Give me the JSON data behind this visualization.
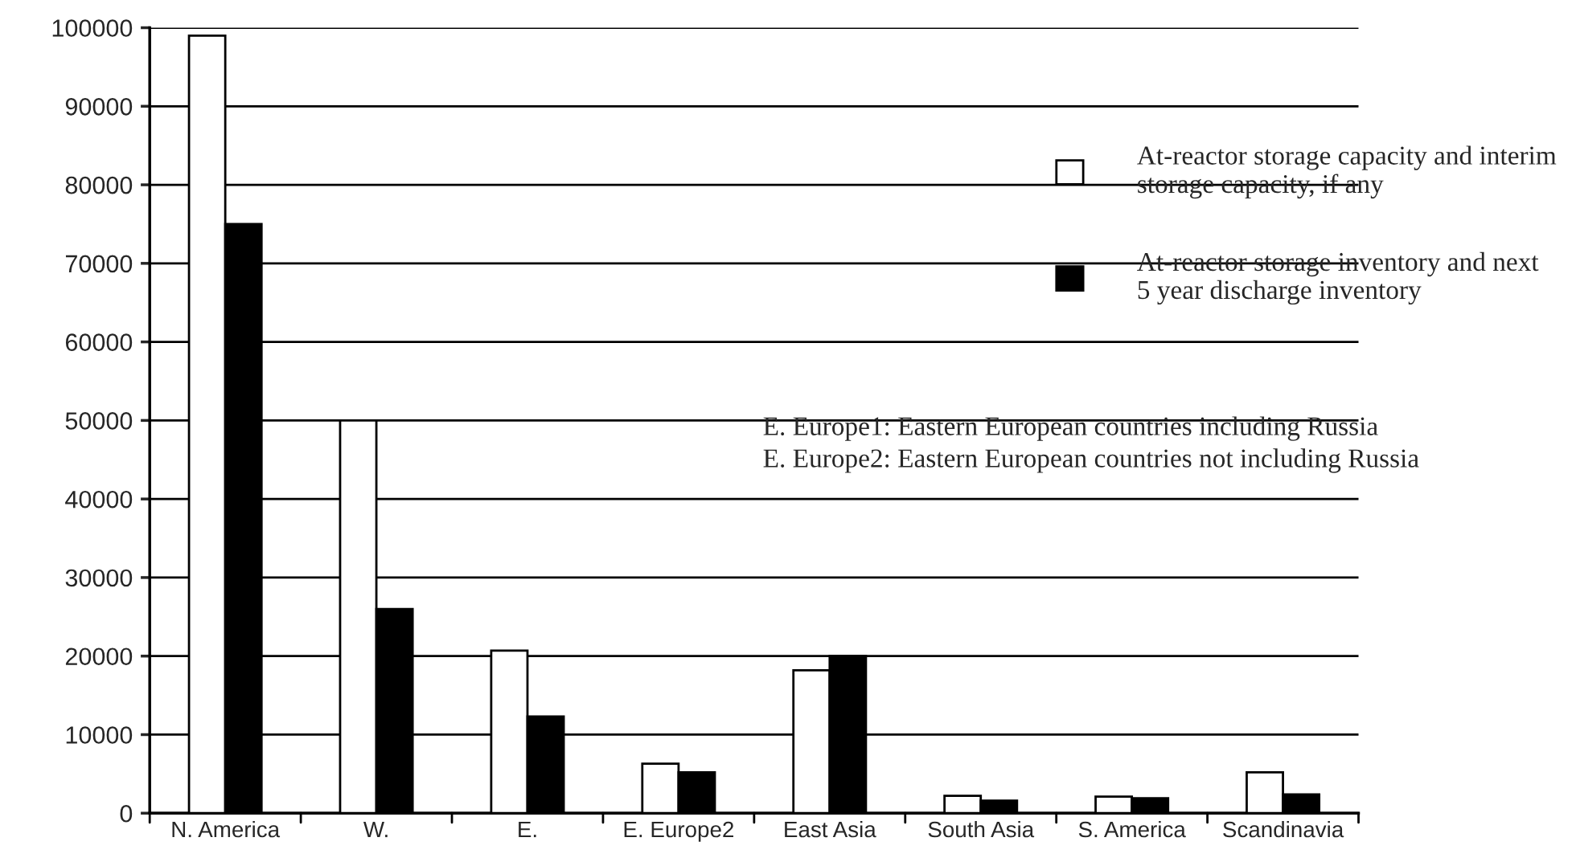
{
  "chart_data": {
    "type": "bar",
    "categories": [
      "N. America",
      "W.",
      "E.",
      "E. Europe2",
      "East Asia",
      "South Asia",
      "S. America",
      "Scandinavia"
    ],
    "series": [
      {
        "name": "At-reactor storage capacity and interim storage capacity, if any",
        "color": "#ffffff",
        "values": [
          99000,
          50000,
          20700,
          6300,
          18200,
          2200,
          2100,
          5200
        ]
      },
      {
        "name": "At-reactor storage inventory and next 5 year discharge inventory",
        "color": "#000000",
        "values": [
          75000,
          26000,
          12300,
          5200,
          20000,
          1600,
          1900,
          2400
        ]
      }
    ],
    "ylim": [
      0,
      100000
    ],
    "yticks": [
      0,
      10000,
      20000,
      30000,
      40000,
      50000,
      60000,
      70000,
      80000,
      90000,
      100000
    ],
    "grid": "y",
    "legend": "right",
    "annotations": [
      "E. Europe1: Eastern European countries including Russia",
      "E. Europe2: Eastern European countries not including Russia"
    ]
  }
}
